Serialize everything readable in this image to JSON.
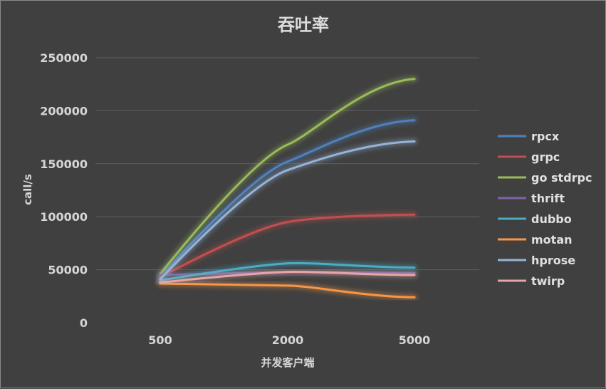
{
  "chart_data": {
    "type": "line",
    "title": "吞吐率",
    "xlabel": "并发客户端",
    "ylabel": "call/s",
    "categories": [
      "500",
      "2000",
      "5000"
    ],
    "ylim": [
      0,
      250000
    ],
    "yticks": [
      0,
      50000,
      100000,
      150000,
      200000,
      250000
    ],
    "grid": true,
    "legend_position": "right",
    "series": [
      {
        "name": "rpcx",
        "color": "#4f81bd",
        "values": [
          43000,
          152000,
          191000
        ]
      },
      {
        "name": "grpc",
        "color": "#c0504d",
        "values": [
          43000,
          95000,
          102000
        ]
      },
      {
        "name": "go stdrpc",
        "color": "#9bbb59",
        "values": [
          46000,
          168000,
          230000
        ]
      },
      {
        "name": "thrift",
        "color": "#8064a2",
        "values": [
          45000,
          48000,
          47000
        ]
      },
      {
        "name": "dubbo",
        "color": "#4bacc6",
        "values": [
          40000,
          56000,
          52000
        ]
      },
      {
        "name": "motan",
        "color": "#f79646",
        "values": [
          37000,
          35000,
          24000
        ]
      },
      {
        "name": "hprose",
        "color": "#95b3d7",
        "values": [
          41000,
          144000,
          171000
        ]
      },
      {
        "name": "twirp",
        "color": "#e6a6a6",
        "values": [
          38000,
          48000,
          45000
        ]
      }
    ]
  }
}
